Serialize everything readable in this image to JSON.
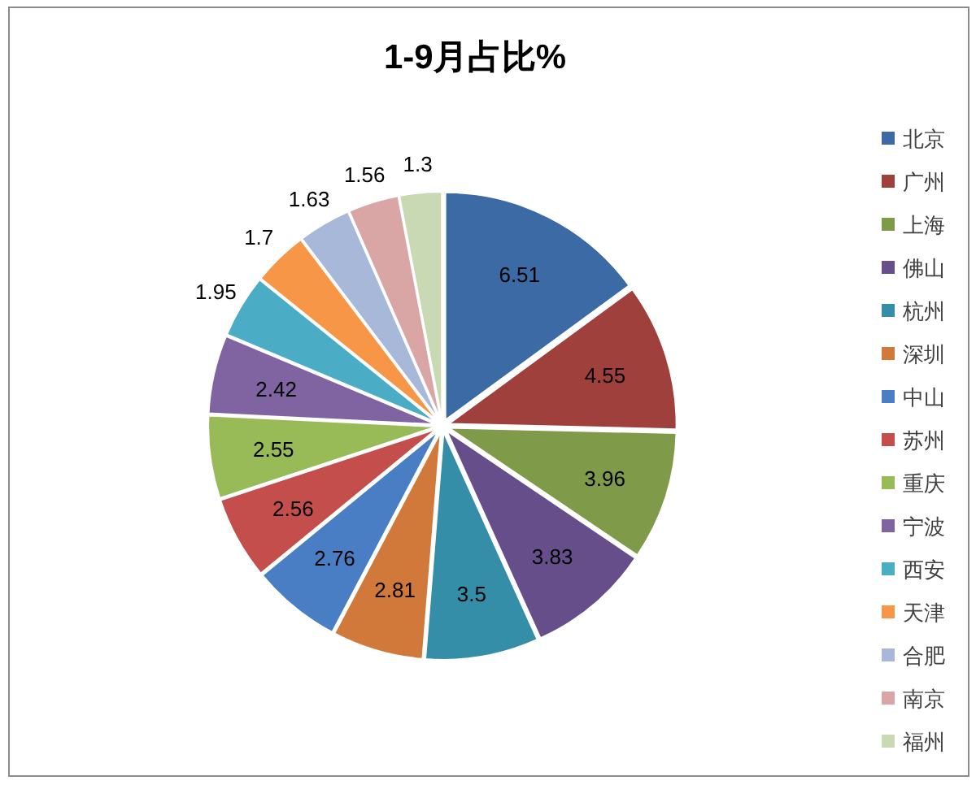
{
  "chart_data": {
    "type": "pie",
    "title": "1-9月占比%",
    "categories": [
      "北京",
      "广州",
      "上海",
      "佛山",
      "杭州",
      "深圳",
      "中山",
      "苏州",
      "重庆",
      "宁波",
      "西安",
      "天津",
      "合肥",
      "南京",
      "福州"
    ],
    "values": [
      6.51,
      4.55,
      3.96,
      3.83,
      3.5,
      2.81,
      2.76,
      2.56,
      2.55,
      2.42,
      1.95,
      1.7,
      1.63,
      1.56,
      1.3
    ],
    "colors": [
      "#3c6aa4",
      "#a0403d",
      "#7f9a48",
      "#664e8a",
      "#358ea7",
      "#d1793a",
      "#4a7ec4",
      "#c44e4b",
      "#98bb58",
      "#8064a2",
      "#4bacc6",
      "#f79646",
      "#a8b8d8",
      "#d9a6a5",
      "#c9d9b3"
    ],
    "data_labels": true,
    "legend": "right"
  }
}
